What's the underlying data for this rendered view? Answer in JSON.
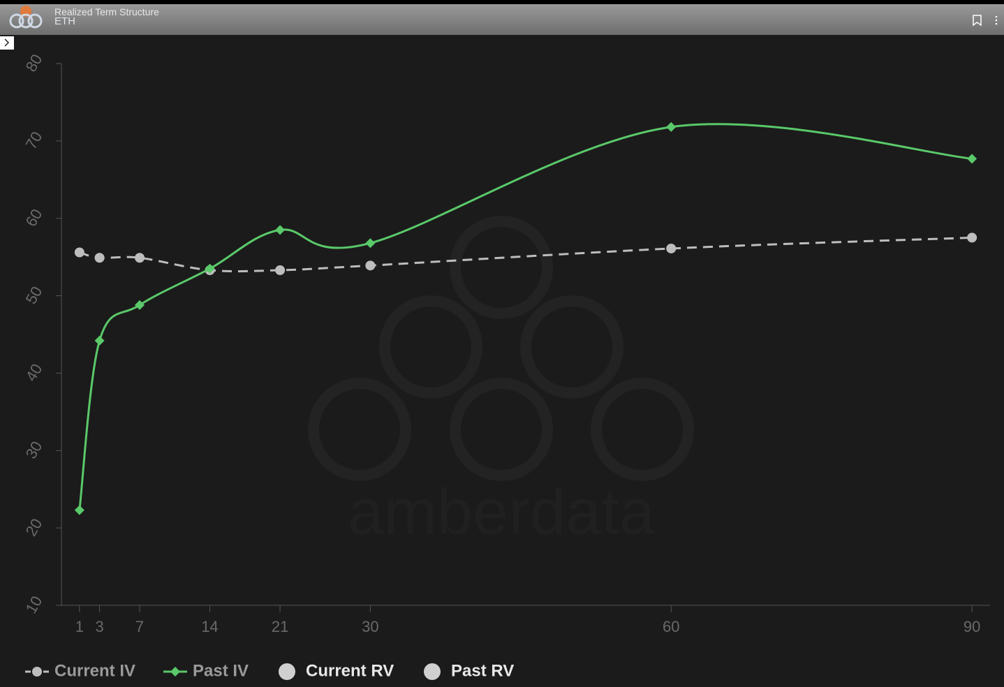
{
  "chart_data": {
    "type": "line",
    "title": "Realized Term Structure",
    "subtitle": "ETH",
    "watermark": "amberdata",
    "x": [
      1,
      3,
      7,
      14,
      21,
      30,
      60,
      90
    ],
    "xlim": [
      -0.8,
      91.8
    ],
    "xticks": [
      1,
      3,
      7,
      14,
      21,
      30,
      60,
      90
    ],
    "ylim": [
      10,
      80
    ],
    "yticks": [
      10,
      20,
      30,
      40,
      50,
      60,
      70,
      80
    ],
    "series": [
      {
        "name": "Current IV",
        "color": "#bdbdbd",
        "values": [
          55.6,
          54.9,
          54.9,
          53.3,
          53.3,
          53.9,
          56.1,
          57.5
        ]
      },
      {
        "name": "Past IV",
        "color": "#5ac96a",
        "values": [
          22.3,
          44.2,
          48.8,
          53.5,
          58.5,
          56.8,
          71.8,
          67.7
        ]
      },
      {
        "name": "Current RV",
        "color": "#d0d0d0",
        "values": [
          null,
          null,
          null,
          null,
          null,
          null,
          null,
          null
        ]
      },
      {
        "name": "Past RV",
        "color": "#d0d0d0",
        "values": [
          null,
          null,
          null,
          null,
          null,
          null,
          null,
          null
        ]
      }
    ]
  }
}
